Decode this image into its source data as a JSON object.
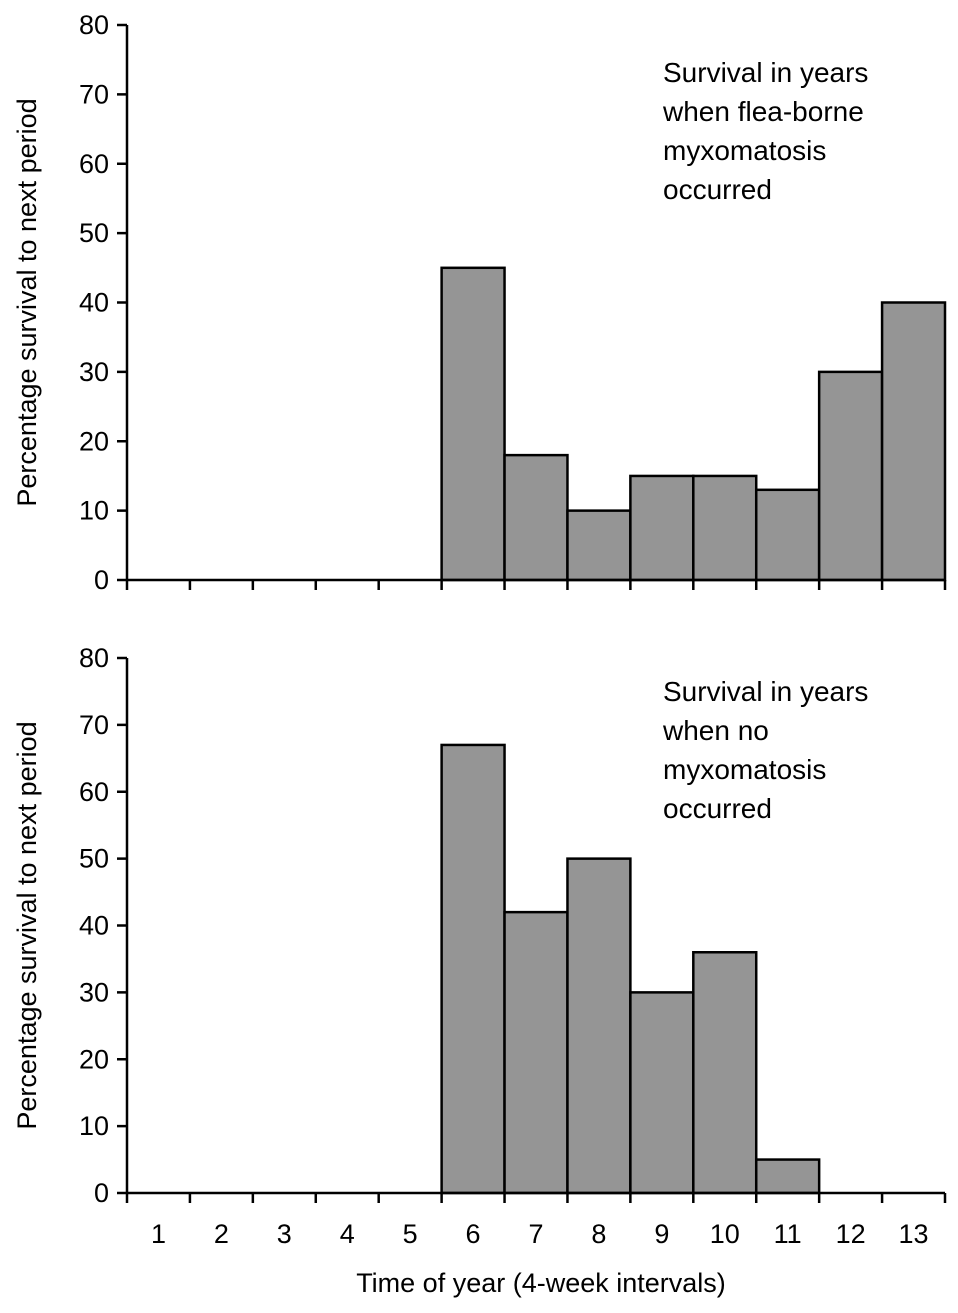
{
  "chart_data": [
    {
      "type": "bar",
      "annotation": [
        "Survival in years",
        "when flea-borne",
        "myxomatosis",
        "occurred"
      ],
      "ylabel": "Percentage survival to next period",
      "xlabel": "",
      "categories": [
        "1",
        "2",
        "3",
        "4",
        "5",
        "6",
        "7",
        "8",
        "9",
        "10",
        "11",
        "12",
        "13"
      ],
      "values": [
        0,
        0,
        0,
        0,
        0,
        45,
        18,
        10,
        15,
        15,
        13,
        30,
        40
      ],
      "ylim": [
        0,
        80
      ],
      "yticks": [
        "0",
        "10",
        "20",
        "30",
        "40",
        "50",
        "60",
        "70",
        "80"
      ],
      "show_xtick_labels": false,
      "bar_color": "#959595",
      "grid": false
    },
    {
      "type": "bar",
      "annotation": [
        "Survival in years",
        "when no",
        "myxomatosis",
        "occurred"
      ],
      "ylabel": "Percentage survival to next period",
      "xlabel": "Time of year (4-week intervals)",
      "categories": [
        "1",
        "2",
        "3",
        "4",
        "5",
        "6",
        "7",
        "8",
        "9",
        "10",
        "11",
        "12",
        "13"
      ],
      "values": [
        0,
        0,
        0,
        0,
        0,
        67,
        42,
        50,
        30,
        36,
        5,
        0,
        0
      ],
      "ylim": [
        0,
        80
      ],
      "yticks": [
        "0",
        "10",
        "20",
        "30",
        "40",
        "50",
        "60",
        "70",
        "80"
      ],
      "show_xtick_labels": true,
      "bar_color": "#959595",
      "grid": false
    }
  ]
}
